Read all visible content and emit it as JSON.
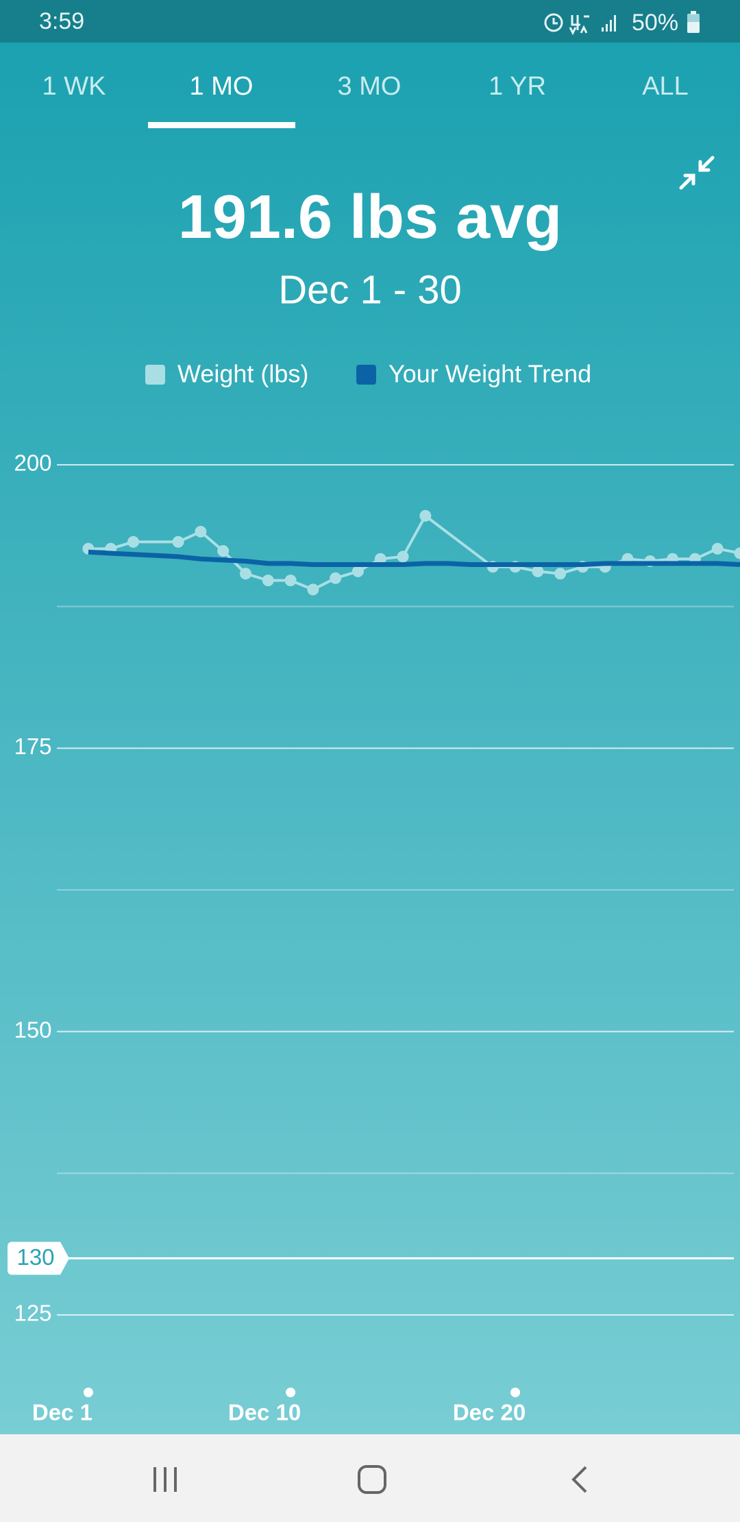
{
  "status_bar": {
    "time": "3:59",
    "battery": "50%"
  },
  "tabs": [
    "1 WK",
    "1 MO",
    "3 MO",
    "1 YR",
    "ALL"
  ],
  "header": {
    "summary": "191.6 lbs avg",
    "range": "Dec 1 - 30"
  },
  "chart_data": {
    "type": "line",
    "series": [
      {
        "name": "Weight (lbs)",
        "color": "#a9dfe4",
        "markers": true,
        "x": [
          1,
          2,
          3,
          5,
          6,
          7,
          8,
          9,
          10,
          11,
          12,
          13,
          14,
          15,
          16,
          19,
          20,
          21,
          22,
          23,
          24,
          25,
          26,
          27,
          28,
          29,
          30
        ],
        "values": [
          192.6,
          192.6,
          193.2,
          193.2,
          194.1,
          192.4,
          190.4,
          189.8,
          189.8,
          189.0,
          190.0,
          190.6,
          191.7,
          191.9,
          195.5,
          191.0,
          191.0,
          190.6,
          190.4,
          191.0,
          191.0,
          191.7,
          191.5,
          191.7,
          191.7,
          192.6,
          192.2
        ]
      },
      {
        "name": "Your Weight Trend",
        "color": "#0b63a6",
        "markers": false,
        "x": [
          1,
          2,
          3,
          4,
          5,
          6,
          7,
          8,
          9,
          10,
          11,
          12,
          13,
          14,
          15,
          16,
          17,
          18,
          19,
          20,
          21,
          22,
          23,
          24,
          25,
          26,
          27,
          28,
          29,
          30
        ],
        "values": [
          192.3,
          192.2,
          192.1,
          192.0,
          191.9,
          191.7,
          191.6,
          191.5,
          191.3,
          191.3,
          191.2,
          191.2,
          191.2,
          191.2,
          191.2,
          191.3,
          191.3,
          191.2,
          191.2,
          191.2,
          191.2,
          191.2,
          191.2,
          191.3,
          191.3,
          191.3,
          191.3,
          191.3,
          191.3,
          191.2
        ]
      }
    ],
    "xlim": [
      -0.4,
      30
    ],
    "xticks": [
      {
        "value": 1,
        "label": "Dec 1"
      },
      {
        "value": 10,
        "label": "Dec 10"
      },
      {
        "value": 20,
        "label": "Dec 20"
      }
    ],
    "ylim": [
      125,
      200
    ],
    "yticks": [
      200,
      175,
      150,
      125
    ],
    "minor_yticks": [
      187.5,
      162.5,
      137.5
    ],
    "goal": 130,
    "grid": true
  }
}
